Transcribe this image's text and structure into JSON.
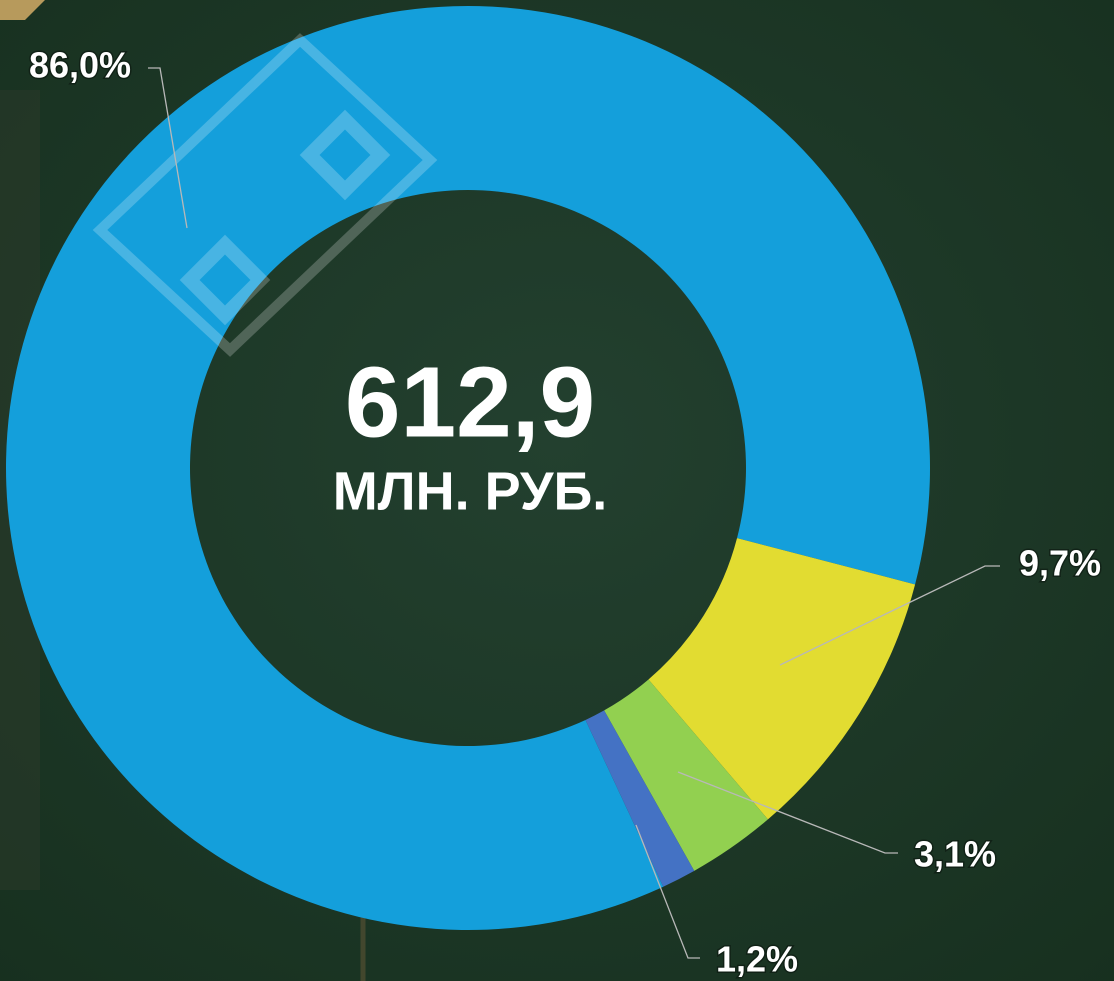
{
  "chart_data": {
    "type": "donut",
    "values": [
      86.0,
      9.7,
      3.1,
      1.2
    ],
    "value_labels": [
      "86,0%",
      "9,7%",
      "3,1%",
      "1,2%"
    ],
    "colors": [
      "#149fdb",
      "#e2dc31",
      "#92d050",
      "#4472c4"
    ],
    "center_text": [
      "612,9",
      "МЛН. РУБ."
    ]
  }
}
